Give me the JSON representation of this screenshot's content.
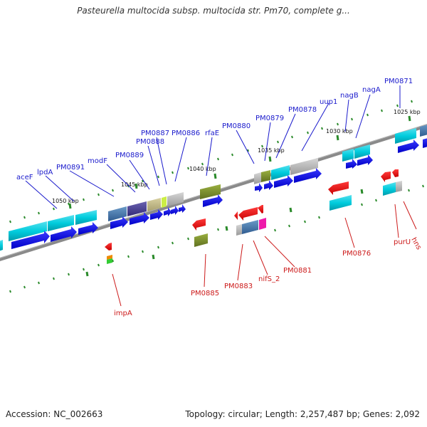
{
  "title": "Pasteurella multocida subsp. multocida str. Pm70, complete g...",
  "footer": {
    "accession": "Accession: NC_002663",
    "summary": "Topology: circular; Length: 2,257,487 bp; Genes: 2,092"
  },
  "colors": {
    "forward": "#1010ee",
    "reverse": "#ee1010",
    "backbone": "#888888",
    "tick": "#2a8a2a",
    "label_forward": "#1a1acc",
    "label_reverse": "#cc1a1a"
  },
  "scale_labels": [
    "1050 kbp",
    "1045 kbp",
    "1040 kbp",
    "1035 kbp",
    "1030 kbp",
    "1025 kbp"
  ],
  "forward_labels": [
    "aceF",
    "lpdA",
    "PM0891",
    "modF",
    "PM0889",
    "PM0888",
    "PM0887",
    "PM0886",
    "rfaE",
    "PM0880",
    "PM0879",
    "PM0878",
    "uup1",
    "nagB",
    "nagA",
    "PM0871"
  ],
  "reverse_labels": [
    "impA",
    "PM0885",
    "PM0883",
    "nifS_2",
    "PM0881",
    "PM0876",
    "purU",
    "hns"
  ]
}
